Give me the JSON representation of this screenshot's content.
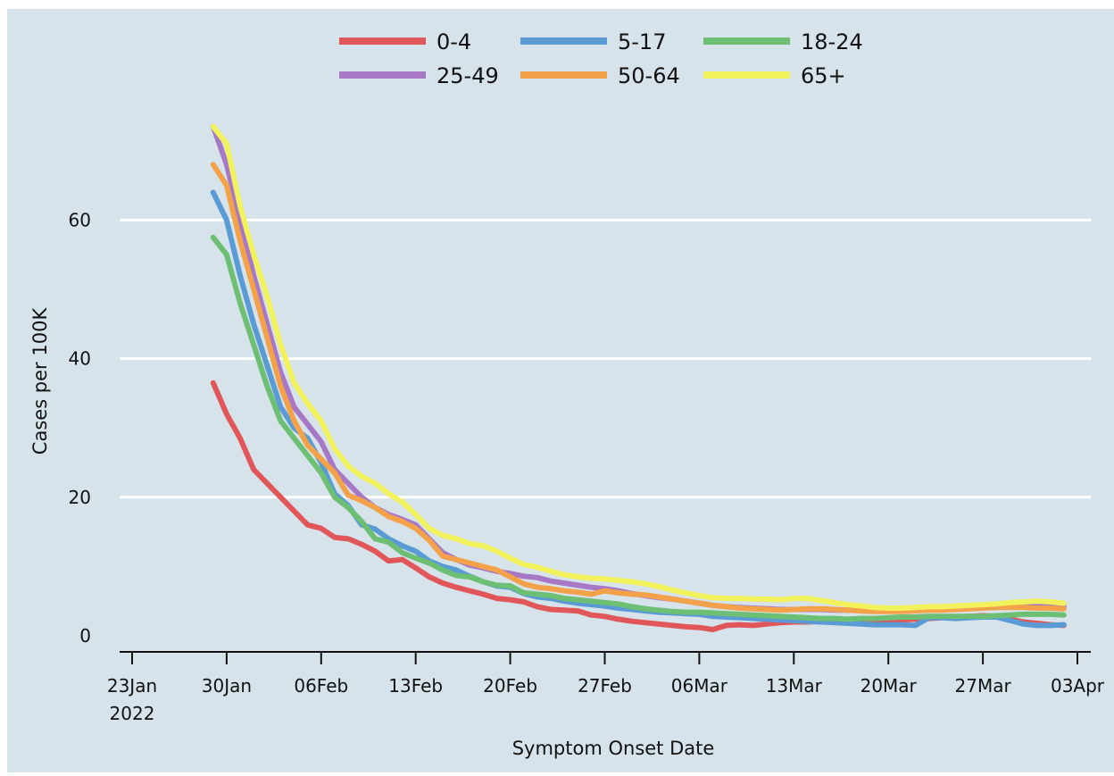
{
  "chart_data": {
    "type": "line",
    "title": "",
    "xlabel": "Symptom Onset Date",
    "ylabel": "Cases per 100K",
    "xlim": [
      "2022-01-23",
      "2022-04-03"
    ],
    "ylim": [
      0,
      75
    ],
    "yticks": [
      0,
      20,
      40,
      60
    ],
    "xticks": [
      {
        "date": "2022-01-23",
        "label": "23Jan",
        "sublabel": "2022"
      },
      {
        "date": "2022-01-30",
        "label": "30Jan",
        "sublabel": ""
      },
      {
        "date": "2022-02-06",
        "label": "06Feb",
        "sublabel": ""
      },
      {
        "date": "2022-02-13",
        "label": "13Feb",
        "sublabel": ""
      },
      {
        "date": "2022-02-20",
        "label": "20Feb",
        "sublabel": ""
      },
      {
        "date": "2022-02-27",
        "label": "27Feb",
        "sublabel": ""
      },
      {
        "date": "2022-03-06",
        "label": "06Mar",
        "sublabel": ""
      },
      {
        "date": "2022-03-13",
        "label": "13Mar",
        "sublabel": ""
      },
      {
        "date": "2022-03-20",
        "label": "20Mar",
        "sublabel": ""
      },
      {
        "date": "2022-03-27",
        "label": "27Mar",
        "sublabel": ""
      },
      {
        "date": "2022-04-03",
        "label": "03Apr",
        "sublabel": ""
      }
    ],
    "grid": "horizontal",
    "legend_position": "top",
    "background_color": "#d6e3ea",
    "x": [
      "2022-01-29",
      "2022-01-30",
      "2022-01-31",
      "2022-02-01",
      "2022-02-02",
      "2022-02-03",
      "2022-02-04",
      "2022-02-05",
      "2022-02-06",
      "2022-02-07",
      "2022-02-08",
      "2022-02-09",
      "2022-02-10",
      "2022-02-11",
      "2022-02-12",
      "2022-02-13",
      "2022-02-14",
      "2022-02-15",
      "2022-02-16",
      "2022-02-17",
      "2022-02-18",
      "2022-02-19",
      "2022-02-20",
      "2022-02-21",
      "2022-02-22",
      "2022-02-23",
      "2022-02-24",
      "2022-02-25",
      "2022-02-26",
      "2022-02-27",
      "2022-02-28",
      "2022-03-01",
      "2022-03-02",
      "2022-03-03",
      "2022-03-04",
      "2022-03-05",
      "2022-03-06",
      "2022-03-07",
      "2022-03-08",
      "2022-03-09",
      "2022-03-10",
      "2022-03-11",
      "2022-03-12",
      "2022-03-13",
      "2022-03-14",
      "2022-03-15",
      "2022-03-16",
      "2022-03-17",
      "2022-03-18",
      "2022-03-19",
      "2022-03-20",
      "2022-03-21",
      "2022-03-22",
      "2022-03-23",
      "2022-03-24",
      "2022-03-25",
      "2022-03-26",
      "2022-03-27",
      "2022-03-28",
      "2022-03-29",
      "2022-03-30",
      "2022-03-31",
      "2022-04-01",
      "2022-04-02"
    ],
    "series": [
      {
        "name": "0-4",
        "color": "#e15759",
        "values": [
          36.5,
          32,
          28.5,
          24,
          22,
          20,
          18,
          16,
          15.5,
          14.2,
          14,
          13.2,
          12.2,
          10.8,
          11,
          9.8,
          8.5,
          7.6,
          7,
          6.5,
          6,
          5.4,
          5.2,
          4.9,
          4.2,
          3.8,
          3.7,
          3.6,
          3.0,
          2.8,
          2.4,
          2.1,
          1.9,
          1.7,
          1.5,
          1.3,
          1.2,
          0.9,
          1.5,
          1.6,
          1.5,
          1.7,
          1.9,
          2.0,
          2.0,
          2.1,
          2.3,
          2.1,
          2.0,
          2.1,
          2.2,
          2.3,
          2.4,
          2.5,
          2.6,
          2.7,
          2.8,
          2.9,
          2.8,
          2.4,
          2.0,
          1.8,
          1.6,
          1.5
        ]
      },
      {
        "name": "5-17",
        "color": "#5b9bd5",
        "values": [
          64,
          60,
          52,
          45,
          39,
          33,
          30,
          28.5,
          25,
          20.5,
          18.8,
          16,
          15.4,
          14,
          13,
          12.2,
          10.8,
          10,
          9.5,
          8.6,
          7.8,
          7.2,
          7,
          6.1,
          5.6,
          5.4,
          5,
          4.7,
          4.5,
          4.3,
          4.0,
          3.8,
          3.6,
          3.4,
          3.3,
          3.2,
          3.1,
          2.8,
          2.7,
          2.6,
          2.5,
          2.4,
          2.3,
          2.2,
          2.1,
          2.0,
          1.9,
          1.8,
          1.7,
          1.6,
          1.6,
          1.6,
          1.5,
          2.6,
          2.6,
          2.5,
          2.6,
          2.7,
          2.7,
          2.2,
          1.7,
          1.5,
          1.5,
          1.6
        ]
      },
      {
        "name": "18-24",
        "color": "#6dbf73",
        "values": [
          57.5,
          55,
          48,
          42,
          36,
          31,
          28.5,
          26,
          23.5,
          20,
          18.5,
          16.5,
          14,
          13.5,
          12,
          11.2,
          10.5,
          9.5,
          8.7,
          8.5,
          7.8,
          7.3,
          7.2,
          6.2,
          6,
          5.8,
          5.4,
          5.2,
          5.0,
          4.8,
          4.6,
          4.2,
          3.9,
          3.7,
          3.5,
          3.4,
          3.4,
          3.3,
          3.2,
          3.1,
          3.0,
          2.9,
          2.8,
          2.7,
          2.6,
          2.5,
          2.5,
          2.4,
          2.5,
          2.5,
          2.6,
          2.7,
          2.7,
          2.8,
          2.8,
          2.8,
          2.8,
          2.8,
          2.9,
          3.0,
          3.1,
          3.1,
          3.1,
          3.0
        ]
      },
      {
        "name": "25-49",
        "color": "#a678c6",
        "values": [
          73.5,
          68,
          60,
          52,
          45,
          38,
          33,
          30.5,
          28,
          24,
          22,
          20,
          18.5,
          17.5,
          16.8,
          16,
          14,
          12,
          11,
          10.2,
          9.8,
          9.3,
          9.0,
          8.6,
          8.4,
          7.9,
          7.6,
          7.3,
          7.0,
          6.8,
          6.5,
          6.1,
          5.8,
          5.5,
          5.3,
          5.0,
          4.7,
          4.4,
          4.2,
          4.1,
          4.0,
          3.9,
          3.8,
          3.8,
          3.8,
          3.8,
          3.7,
          3.7,
          3.7,
          3.7,
          3.7,
          3.8,
          3.9,
          4.0,
          4.1,
          4.2,
          4.3,
          4.4,
          4.5,
          4.5,
          4.5,
          4.4,
          4.3,
          4.2
        ]
      },
      {
        "name": "50-64",
        "color": "#f4a24a",
        "values": [
          68,
          65,
          57,
          50,
          43,
          36,
          31,
          27.5,
          25.5,
          23.5,
          20.3,
          19.5,
          18.5,
          17.2,
          16.5,
          15.5,
          13.8,
          11.5,
          11,
          10.5,
          10,
          9.5,
          8.5,
          7.5,
          7,
          6.8,
          6.5,
          6.3,
          6.0,
          6.5,
          6.2,
          6.0,
          5.9,
          5.6,
          5.3,
          5.0,
          4.7,
          4.4,
          4.2,
          4.0,
          3.9,
          3.8,
          3.7,
          3.8,
          3.9,
          3.9,
          3.8,
          3.7,
          3.6,
          3.5,
          3.5,
          3.5,
          3.6,
          3.7,
          3.7,
          3.8,
          3.9,
          4.0,
          4.1,
          4.1,
          4.1,
          4.0,
          4.0,
          3.9
        ]
      },
      {
        "name": "65+",
        "color": "#f2f25c",
        "values": [
          73.5,
          71,
          62,
          55,
          49,
          42,
          36.5,
          33.5,
          31,
          27,
          24.5,
          23,
          22,
          20.5,
          19.3,
          17.5,
          15.5,
          14.5,
          14,
          13.3,
          13,
          12.2,
          11.2,
          10.3,
          9.9,
          9.3,
          8.8,
          8.5,
          8.3,
          8.2,
          8.0,
          7.8,
          7.5,
          7.1,
          6.6,
          6.2,
          5.8,
          5.5,
          5.4,
          5.4,
          5.3,
          5.3,
          5.2,
          5.4,
          5.4,
          5.1,
          4.8,
          4.5,
          4.3,
          4.1,
          4.0,
          4.0,
          4.1,
          4.2,
          4.2,
          4.3,
          4.4,
          4.5,
          4.6,
          4.8,
          4.9,
          5.0,
          4.9,
          4.7
        ]
      }
    ]
  }
}
